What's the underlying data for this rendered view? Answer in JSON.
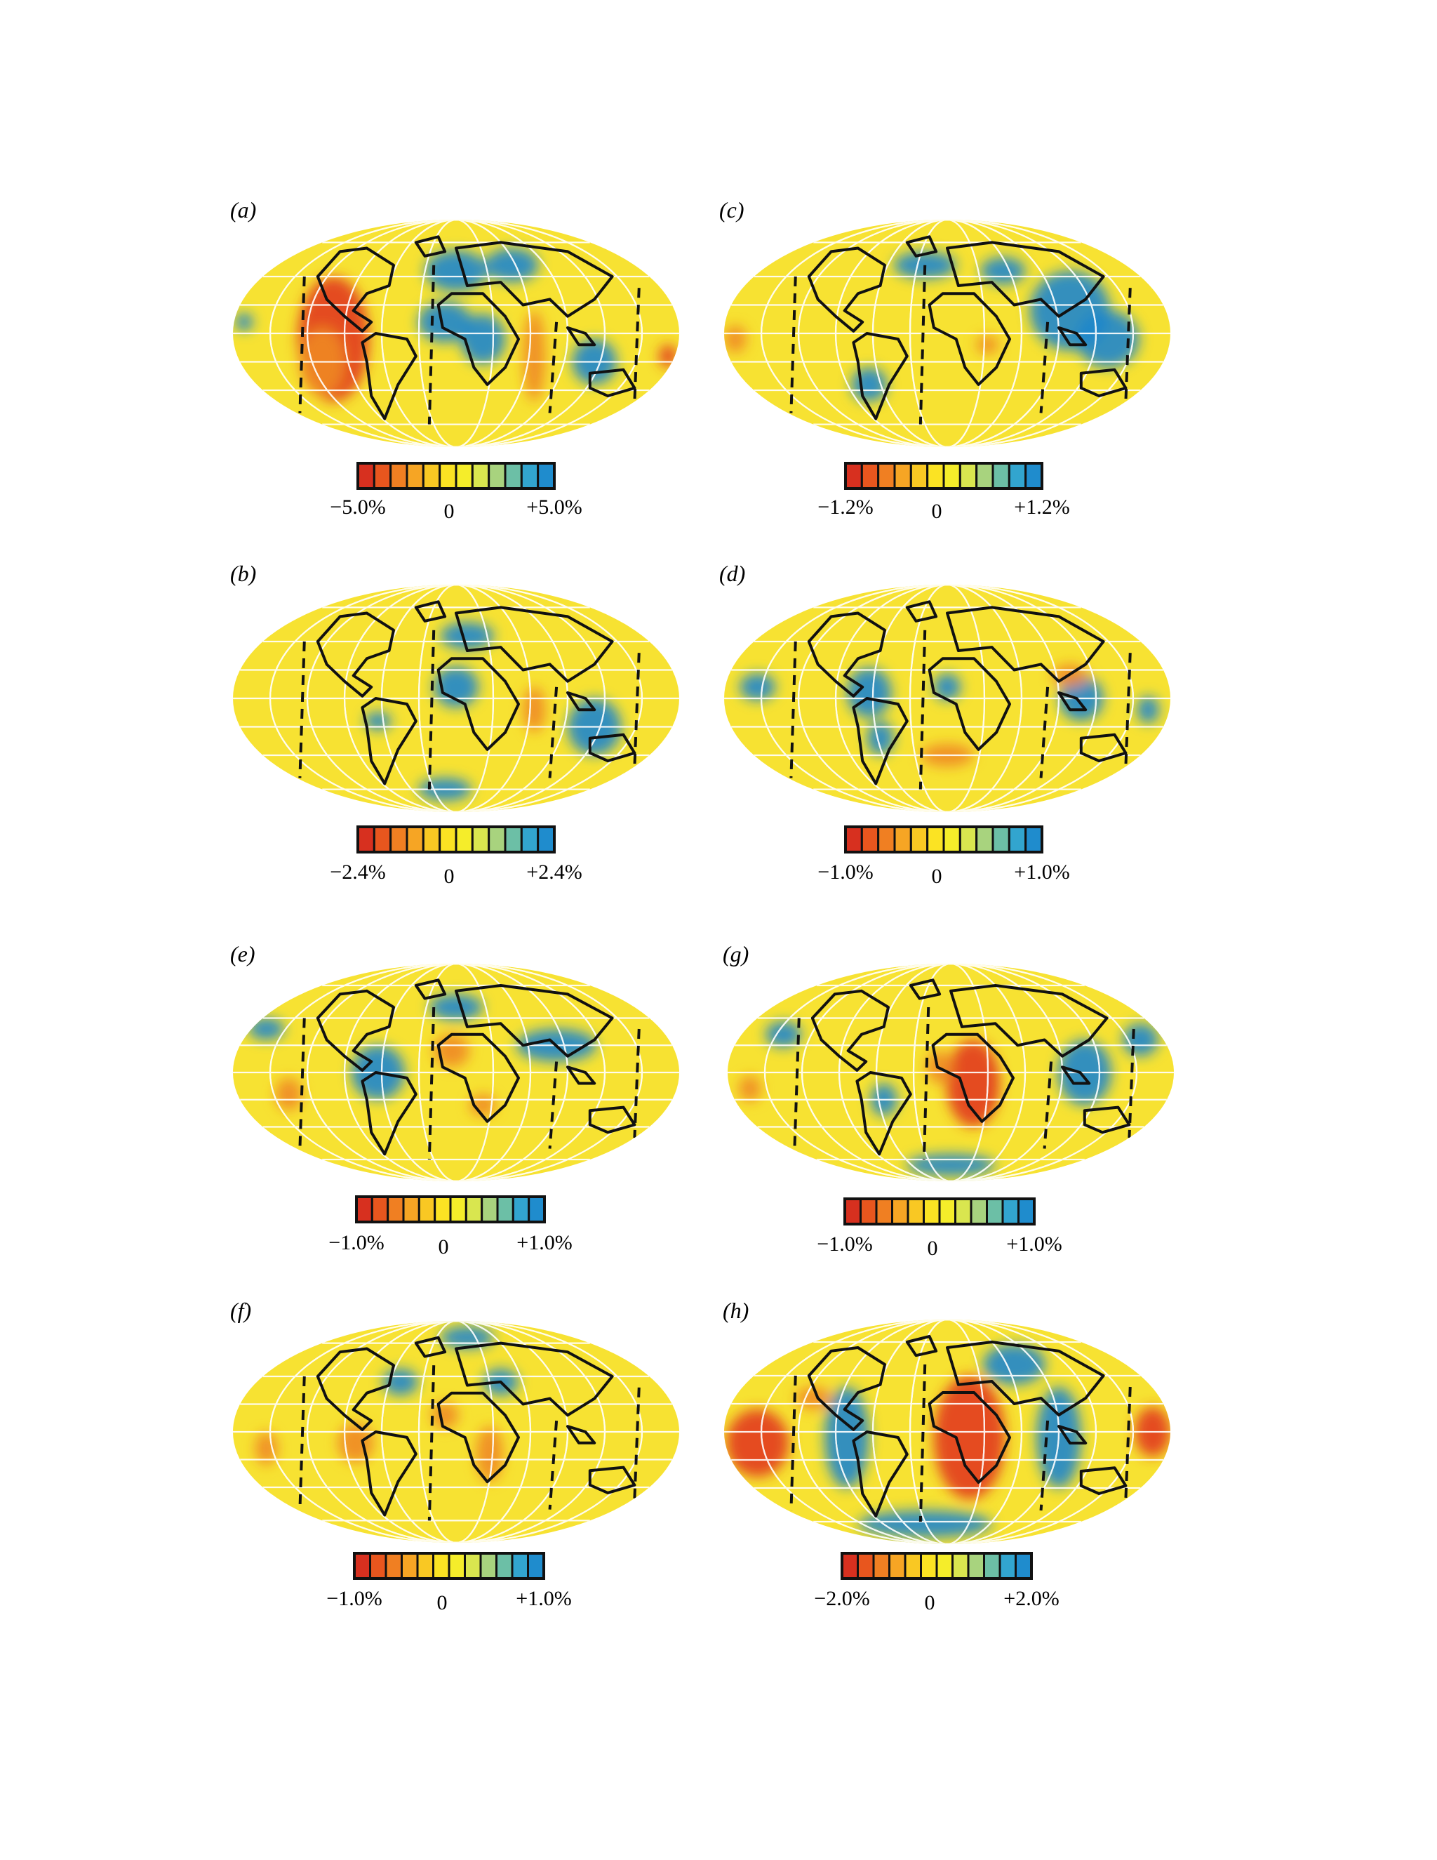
{
  "panels": [
    {
      "label": "(a)",
      "scale_min": "−5.0%",
      "scale_zero": "0",
      "scale_max": "+5.0%",
      "pattern": "a"
    },
    {
      "label": "(c)",
      "scale_min": "−1.2%",
      "scale_zero": "0",
      "scale_max": "+1.2%",
      "pattern": "c"
    },
    {
      "label": "(b)",
      "scale_min": "−2.4%",
      "scale_zero": "0",
      "scale_max": "+2.4%",
      "pattern": "b"
    },
    {
      "label": "(d)",
      "scale_min": "−1.0%",
      "scale_zero": "0",
      "scale_max": "+1.0%",
      "pattern": "d"
    },
    {
      "label": "(e)",
      "scale_min": "−1.0%",
      "scale_zero": "0",
      "scale_max": "+1.0%",
      "pattern": "e"
    },
    {
      "label": "(g)",
      "scale_min": "−1.0%",
      "scale_zero": "0",
      "scale_max": "+1.0%",
      "pattern": "g"
    },
    {
      "label": "(f)",
      "scale_min": "−1.0%",
      "scale_zero": "0",
      "scale_max": "+1.0%",
      "pattern": "f"
    },
    {
      "label": "(h)",
      "scale_min": "−2.0%",
      "scale_zero": "0",
      "scale_max": "+2.0%",
      "pattern": "h"
    }
  ],
  "colors": {
    "colorbar": [
      "#d7301f",
      "#e8561e",
      "#f07f22",
      "#f6a524",
      "#f9c823",
      "#fbe323",
      "#f5ed2a",
      "#d9e64f",
      "#a8d37e",
      "#6cbfa6",
      "#32a5cf",
      "#1f8ccd"
    ],
    "map_base": "#f7e232",
    "slow": "#e23b1f",
    "fast": "#1f86cc",
    "coast": "#111111",
    "grid": "#ffffff"
  }
}
